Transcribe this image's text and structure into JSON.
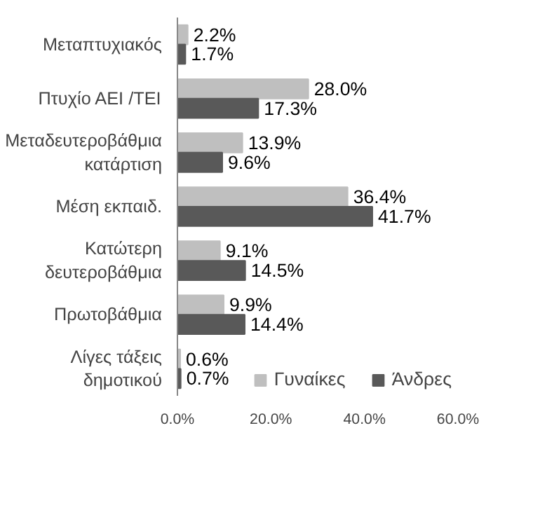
{
  "chart_data": {
    "type": "bar",
    "orientation": "horizontal",
    "categories": [
      "Μεταπτυχιακός",
      "Πτυχίο ΑΕΙ /ΤΕΙ",
      "Μεταδευτεροβάθμια κατάρτιση",
      "Μέση εκπαιδ.",
      "Κατώτερη δευτεροβάθμια",
      "Πρωτοβάθμια",
      "Λίγες τάξεις δημοτικού"
    ],
    "series": [
      {
        "name": "Γυναίκες",
        "color": "#bfbfbf",
        "values": [
          2.2,
          28.0,
          13.9,
          36.4,
          9.1,
          9.9,
          0.6
        ],
        "value_labels": [
          "2.2%",
          "28.0%",
          "13.9%",
          "36.4%",
          "9.1%",
          "9.9%",
          "0.6%"
        ]
      },
      {
        "name": "Άνδρες",
        "color": "#595959",
        "values": [
          1.7,
          17.3,
          9.6,
          41.7,
          14.5,
          14.4,
          0.7
        ],
        "value_labels": [
          "1.7%",
          "17.3%",
          "9.6%",
          "41.7%",
          "14.5%",
          "14.4%",
          "0.7%"
        ]
      }
    ],
    "xlim": [
      0,
      60
    ],
    "xticks": [
      {
        "value": 0,
        "label": "0.0%"
      },
      {
        "value": 20,
        "label": "20.0%"
      },
      {
        "value": 40,
        "label": "40.0%"
      },
      {
        "value": 60,
        "label": "60.0%"
      }
    ],
    "grid": false,
    "legend": "bottom"
  }
}
